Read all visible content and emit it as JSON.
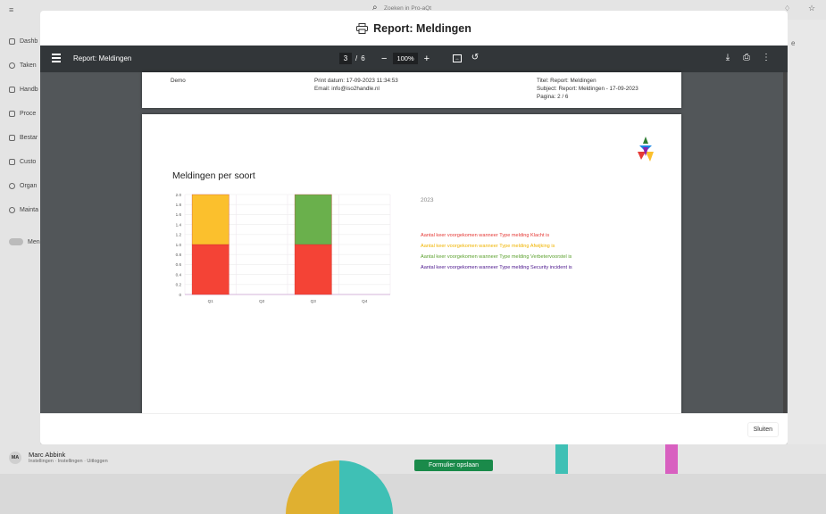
{
  "app": {
    "search_placeholder": "Zoeken in Pro-aQt",
    "sidebar_items": [
      "Dashb",
      "Taken",
      "Handb",
      "Proce",
      "Bestar",
      "Custo",
      "Organ",
      "Mainta"
    ],
    "toggle_label": "Men",
    "right_label": "e",
    "user_name": "Marc Abbink",
    "user_initials": "MA",
    "user_links": "Instellingen · Instellingen · Uitloggen",
    "save_button": "Formulier opslaan"
  },
  "modal": {
    "title": "Report: Meldingen",
    "close_label": "Sluiten"
  },
  "viewer": {
    "doc_title": "Report: Meldingen",
    "page_current": "3",
    "page_sep": "/",
    "page_total": "6",
    "zoom": "100%"
  },
  "header_page": {
    "left": "Demo",
    "mid_line1": "Print datum: 17-09-2023 11:34:53",
    "mid_line2": "Email: info@iso2handle.nl",
    "right_line1": "Titel: Report: Meldingen",
    "right_line2": "Subject: Report: Meldingen - 17-09-2023",
    "right_line3": "Pagina: 2 / 6"
  },
  "report": {
    "chart_heading": "Meldingen per soort",
    "legend_year": "2023",
    "legend_items": [
      {
        "text": "Aantal keer voorgekomen wanneer Type melding Klacht is",
        "color": "#e53935"
      },
      {
        "text": "Aantal keer voorgekomen wanneer Type melding Afwijking is",
        "color": "#f9c22e"
      },
      {
        "text": "Aantal keer voorgekomen wanneer Type melding Verbetervoorstel is",
        "color": "#5aa02c"
      },
      {
        "text": "Aantal keer voorgekomen wanneer Type melding Security incident is",
        "color": "#4a148c"
      }
    ]
  },
  "chart_data": {
    "type": "bar",
    "stacked": true,
    "title": "Meldingen per soort",
    "categories": [
      "Q1",
      "Q2",
      "Q3",
      "Q4"
    ],
    "yticks": [
      "0",
      "0.2",
      "0.4",
      "0.6",
      "0.8",
      "1.0",
      "1.2",
      "1.4",
      "1.6",
      "1.8",
      "2.0"
    ],
    "ylim": [
      0,
      2
    ],
    "series": [
      {
        "name": "Aantal keer voorgekomen wanneer Type melding Klacht is",
        "color": "#f44336",
        "values": [
          1,
          0,
          1,
          0
        ]
      },
      {
        "name": "Aantal keer voorgekomen wanneer Type melding Afwijking is",
        "color": "#fbc02d",
        "values": [
          1,
          0,
          0,
          0
        ]
      },
      {
        "name": "Aantal keer voorgekomen wanneer Type melding Verbetervoorstel is",
        "color": "#6ab04c",
        "values": [
          0,
          0,
          1,
          0
        ]
      },
      {
        "name": "Aantal keer voorgekomen wanneer Type melding Security incident is",
        "color": "#4a148c",
        "values": [
          0,
          0,
          0,
          0
        ]
      }
    ]
  }
}
